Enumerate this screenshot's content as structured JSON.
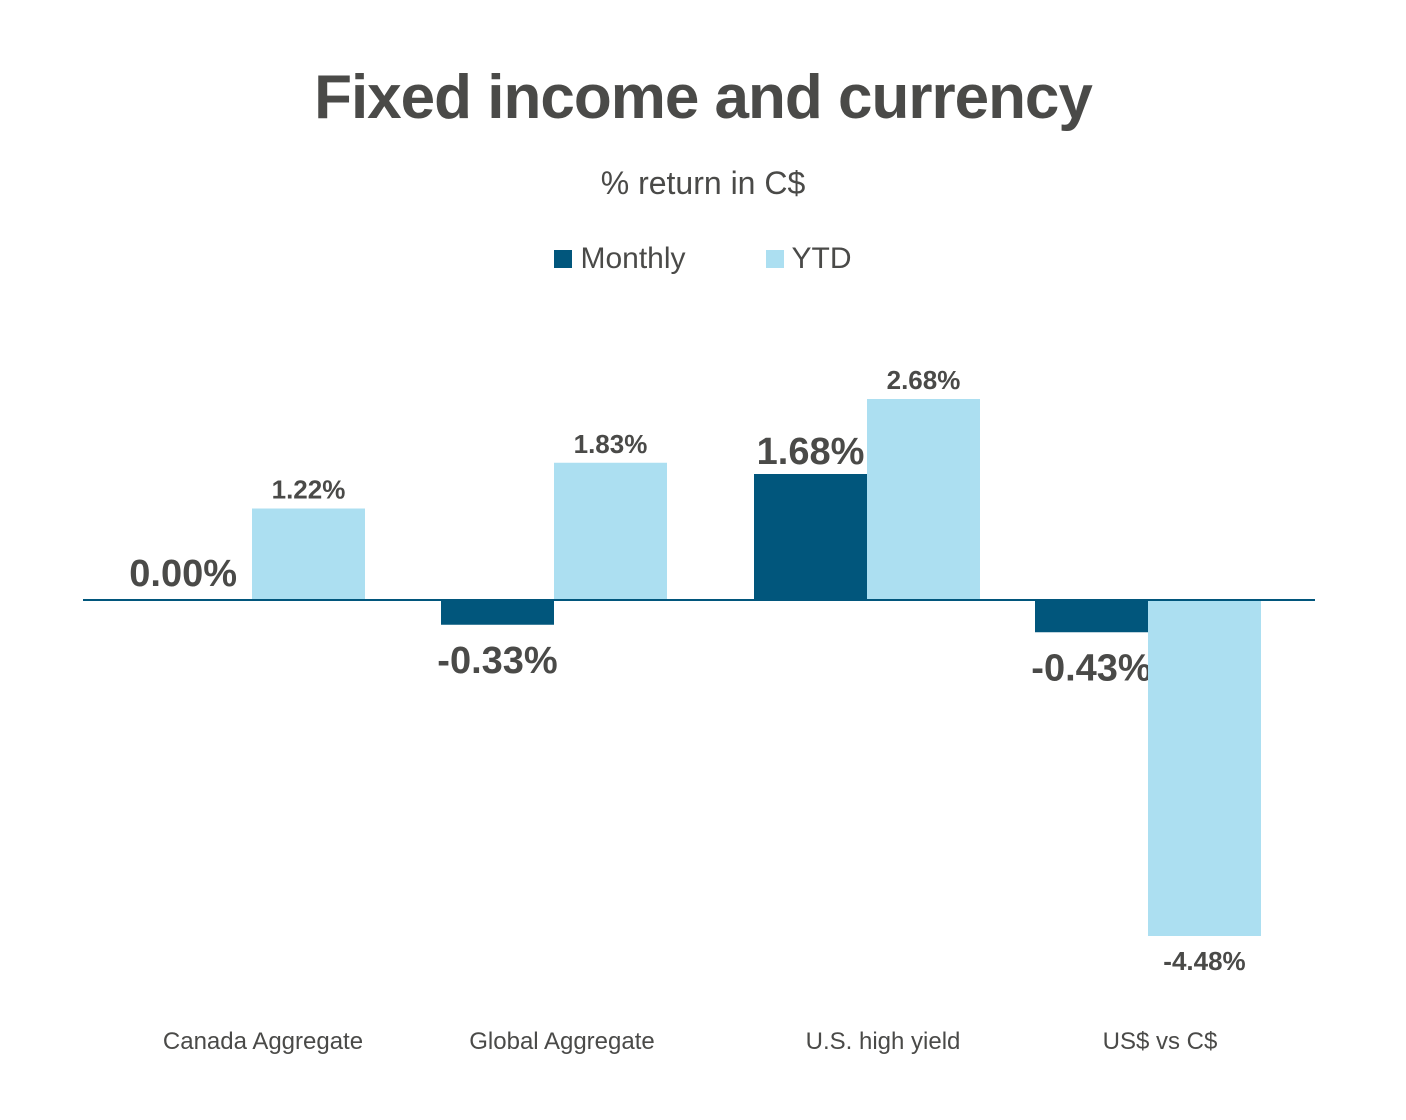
{
  "title": "Fixed income and currency",
  "subtitle": "% return in C$",
  "colors": {
    "monthly": "#01567c",
    "ytd": "#acdff1",
    "axis": "#01567c"
  },
  "chart_data": {
    "type": "bar",
    "title": "Fixed income and currency",
    "subtitle": "% return in C$",
    "categories": [
      "Canada Aggregate",
      "Global Aggregate",
      "U.S. high yield",
      "US$ vs C$"
    ],
    "series": [
      {
        "name": "Monthly",
        "values": [
          0.0,
          -0.33,
          1.68,
          -0.43
        ],
        "labels": [
          "0.00%",
          "-0.33%",
          "1.68%",
          "-0.43%"
        ]
      },
      {
        "name": "YTD",
        "values": [
          1.22,
          1.83,
          2.68,
          -4.48
        ],
        "labels": [
          "1.22%",
          "1.83%",
          "2.68%",
          "-4.48%"
        ]
      }
    ],
    "ylim": [
      -5.5,
      3.2
    ],
    "grid": false,
    "legend": "top-center"
  }
}
